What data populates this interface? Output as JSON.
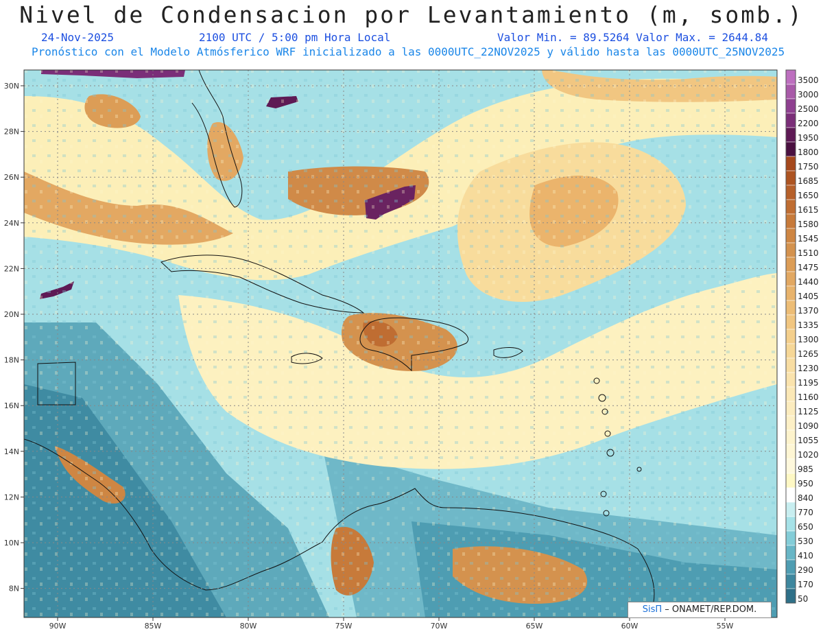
{
  "header": {
    "title": "Nivel de Condensacion por Levantamiento (m, somb.)",
    "date": "24-Nov-2025",
    "time": "2100 UTC / 5:00 pm Hora Local",
    "value_range": "Valor Min. = 89.5264  Valor Max. = 2644.84",
    "forecast_note": "Pronóstico con el Modelo Atmósferico WRF inicializado a las 0000UTC_22NOV2025 y válido hasta las  0000UTC_25NOV2025"
  },
  "map": {
    "lon_labels": [
      "90W",
      "85W",
      "80W",
      "75W",
      "70W",
      "65W",
      "60W",
      "55W"
    ],
    "lat_labels": [
      "30N",
      "28N",
      "26N",
      "24N",
      "22N",
      "20N",
      "18N",
      "16N",
      "14N",
      "12N",
      "10N",
      "8N"
    ]
  },
  "colorbar": {
    "levels": [
      "3500",
      "3000",
      "2500",
      "2200",
      "1950",
      "1800",
      "1750",
      "1685",
      "1650",
      "1615",
      "1580",
      "1545",
      "1510",
      "1475",
      "1440",
      "1405",
      "1370",
      "1335",
      "1300",
      "1265",
      "1230",
      "1195",
      "1160",
      "1125",
      "1090",
      "1055",
      "1020",
      "985",
      "950",
      "840",
      "770",
      "650",
      "530",
      "410",
      "290",
      "170",
      "50"
    ],
    "colors": [
      "#bd6fbf",
      "#a85aa8",
      "#8e4090",
      "#7a2e78",
      "#5e1a55",
      "#4a1040",
      "#a5481c",
      "#ad5422",
      "#b6602a",
      "#bf6d32",
      "#c77a3a",
      "#ce8643",
      "#d4924e",
      "#dc9d56",
      "#e2a862",
      "#e8b36c",
      "#edbd76",
      "#f1c681",
      "#f4cf8c",
      "#f6d797",
      "#f8dda2",
      "#fae3ad",
      "#fbe8b6",
      "#fcecbe",
      "#fdf0c6",
      "#fdf3cc",
      "#fef6d4",
      "#fef8dc",
      "#fef8c4",
      "#ffffff",
      "#c8eef0",
      "#a6e2e8",
      "#84cdd8",
      "#68b6c6",
      "#4f9db2",
      "#3e879e",
      "#2e7088"
    ]
  },
  "credit": {
    "logo": "SisΠ",
    "text": "– ONAMET/REP.DOM."
  }
}
